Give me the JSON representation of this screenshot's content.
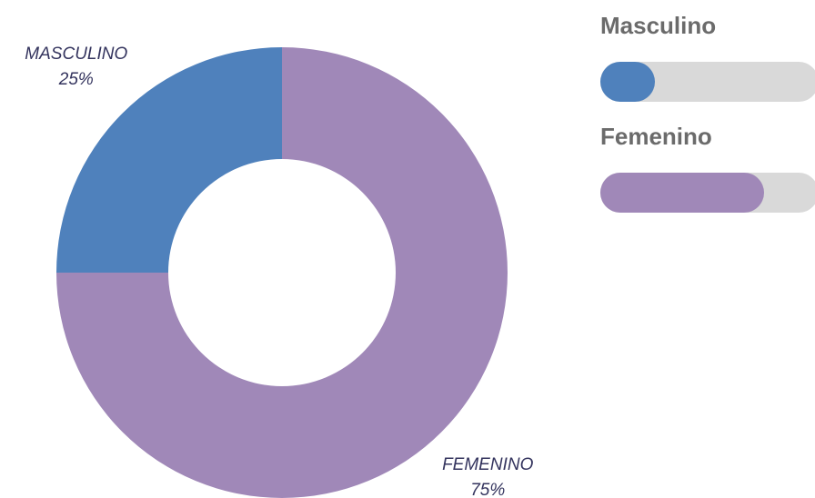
{
  "chart_data": {
    "type": "pie",
    "categories": [
      "Masculino",
      "Femenino"
    ],
    "labels": [
      "MASCULINO",
      "FEMENINO"
    ],
    "values": [
      25,
      75
    ],
    "value_labels": [
      "25%",
      "75%"
    ],
    "colors": [
      "#4f81bc",
      "#a088b8"
    ]
  }
}
